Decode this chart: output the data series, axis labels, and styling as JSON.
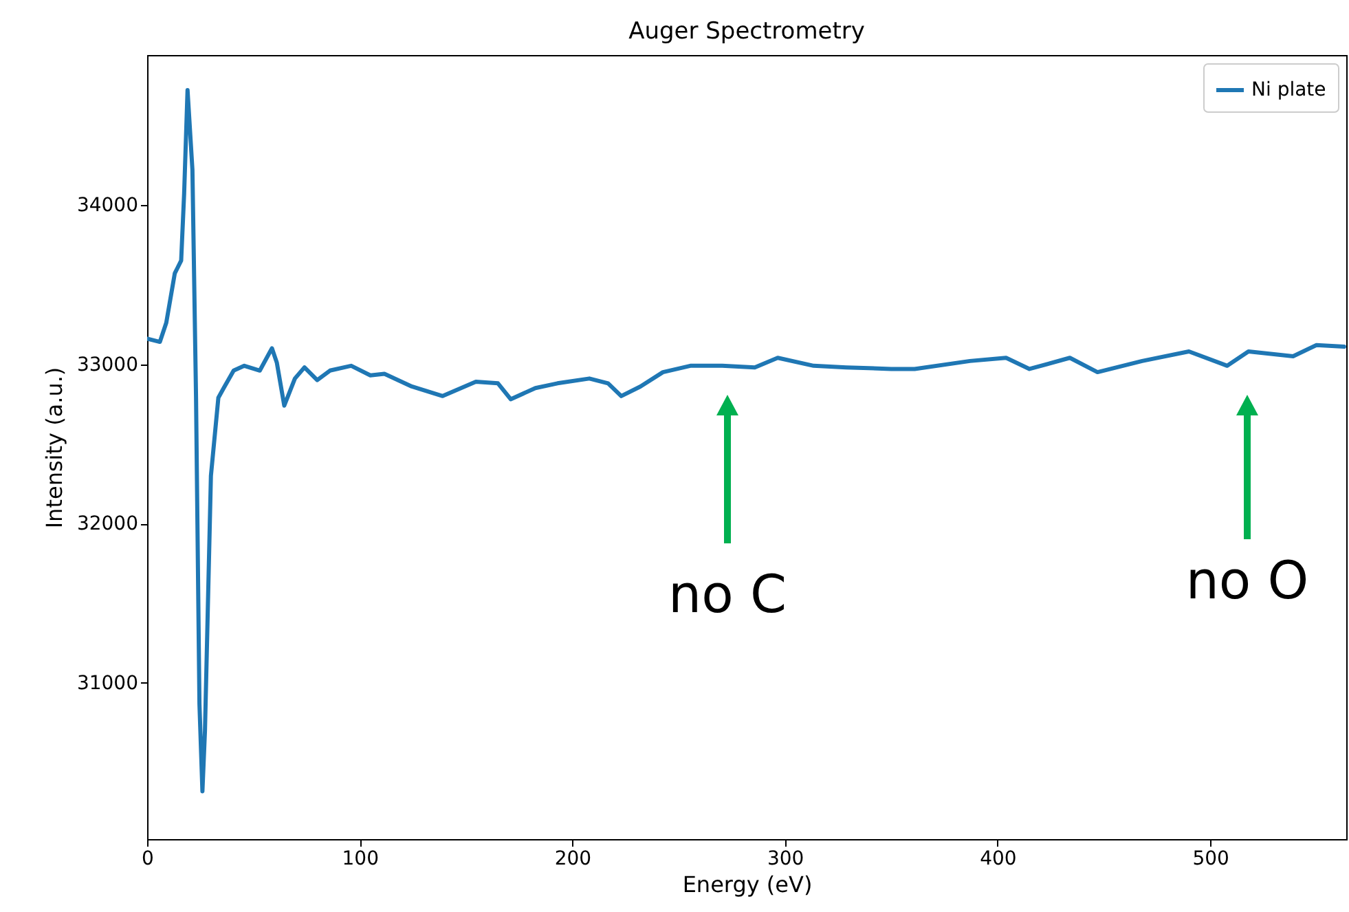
{
  "chart_data": {
    "type": "line",
    "title": "Auger Spectrometry",
    "xlabel": "Energy (eV)",
    "ylabel": "Intensity (a.u.)",
    "xlim": [
      0,
      564
    ],
    "ylim": [
      30020,
      34940
    ],
    "xticks": [
      0,
      100,
      200,
      300,
      400,
      500
    ],
    "yticks": [
      31000,
      32000,
      33000,
      34000
    ],
    "grid": false,
    "legend": "top right",
    "annotations": [
      "no C",
      "no O"
    ],
    "series": [
      {
        "name": "Ni plate",
        "color": "#1f77b4",
        "x": [
          0,
          6,
          9,
          13,
          16,
          17.4,
          19,
          21.3,
          23,
          24.6,
          26,
          27.2,
          30,
          33.5,
          36,
          40.7,
          45.7,
          53,
          58.7,
          61,
          64.5,
          69.5,
          74,
          80,
          86,
          96,
          105,
          111.6,
          124.5,
          139,
          154.6,
          165,
          171,
          182.6,
          193,
          208,
          216.8,
          223,
          232,
          242.6,
          255.5,
          270.5,
          285.8,
          296.6,
          313.5,
          328.8,
          350,
          361,
          387,
          404,
          415,
          434,
          447,
          468,
          490,
          508,
          518,
          539,
          550,
          563
        ],
        "values": [
          33160,
          33140,
          33260,
          33570,
          33650,
          34070,
          34720,
          34220,
          32790,
          30870,
          30320,
          30700,
          32300,
          32790,
          32850,
          32960,
          32990,
          32960,
          33100,
          33010,
          32740,
          32910,
          32980,
          32900,
          32960,
          32990,
          32930,
          32940,
          32860,
          32800,
          32890,
          32880,
          32780,
          32850,
          32880,
          32910,
          32880,
          32800,
          32860,
          32950,
          32990,
          32990,
          32980,
          33040,
          32990,
          32980,
          32970,
          32970,
          33020,
          33040,
          32970,
          33040,
          32950,
          33020,
          33080,
          32990,
          33080,
          33050,
          33120,
          33110
        ]
      }
    ]
  }
}
